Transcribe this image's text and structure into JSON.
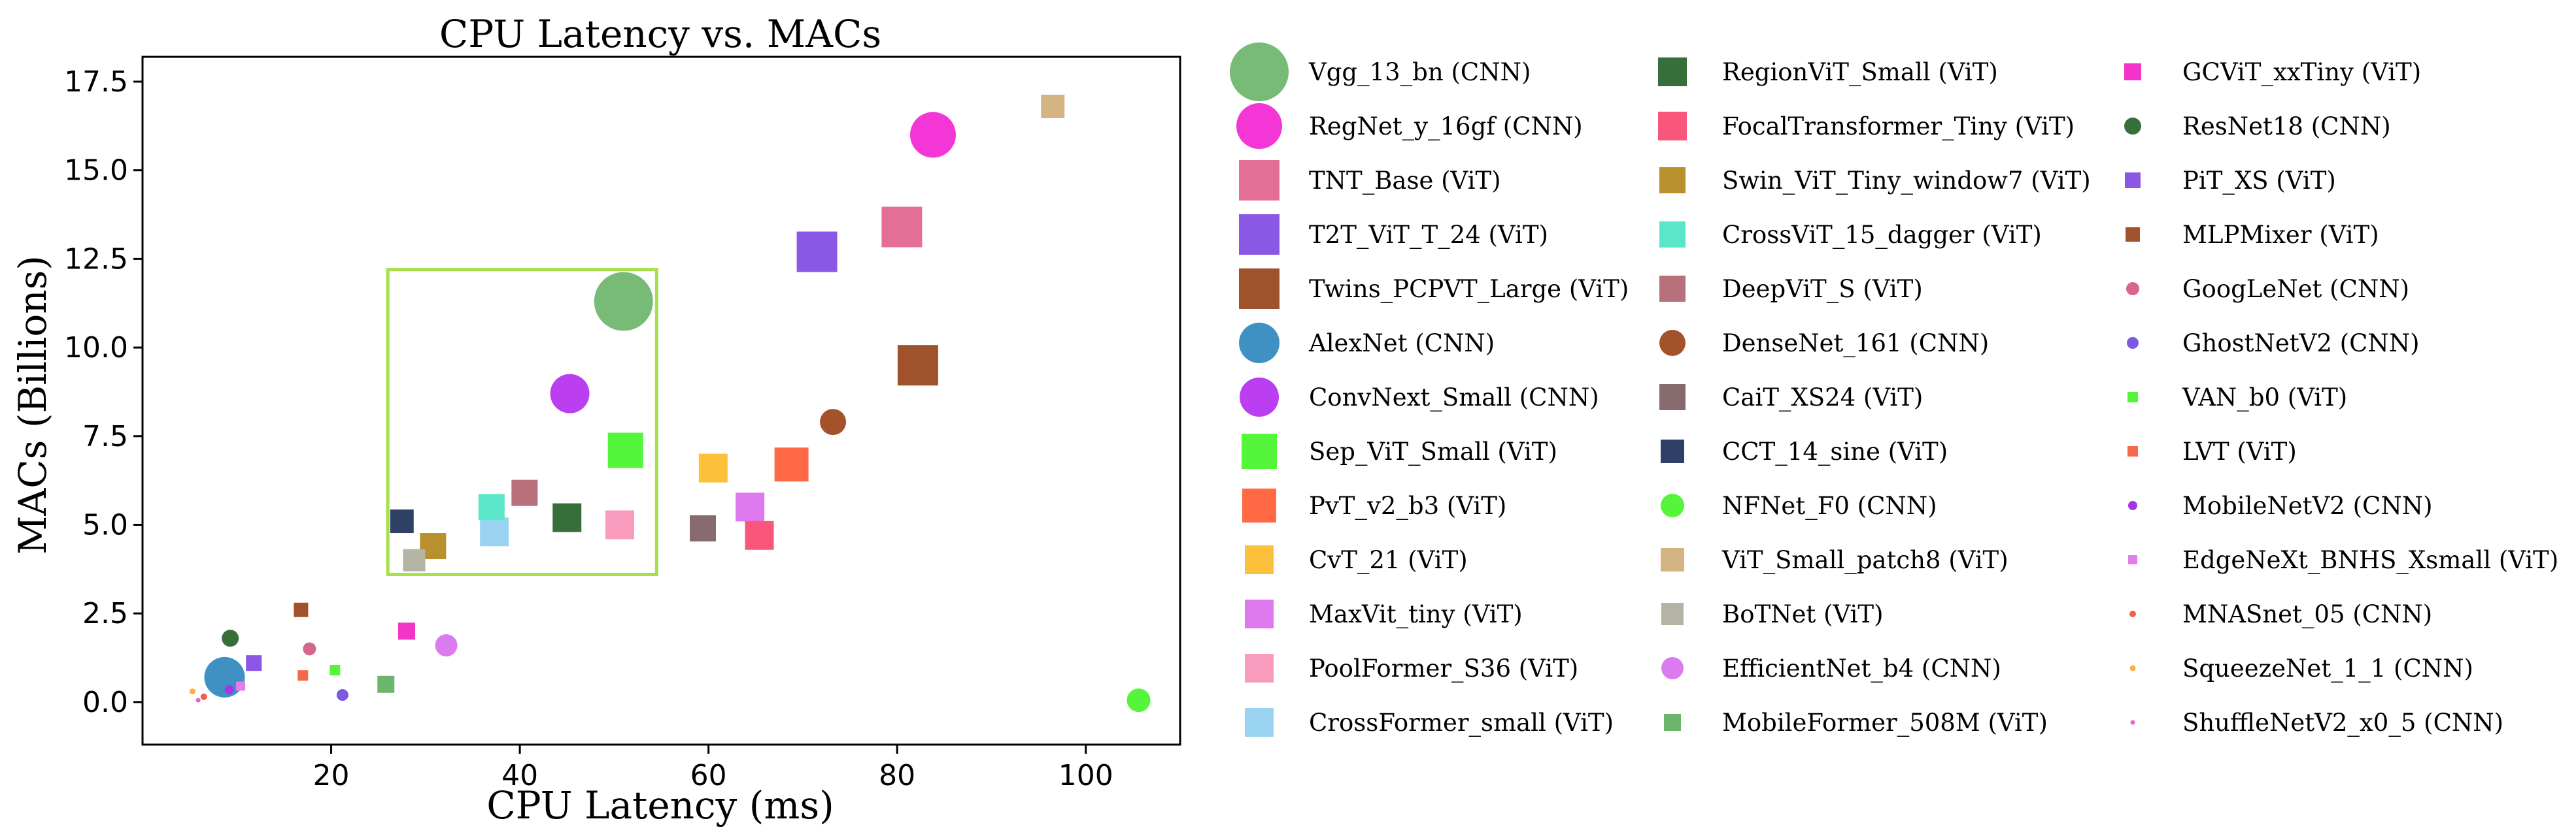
{
  "chart_data": {
    "type": "scatter",
    "title": "CPU Latency vs. MACs",
    "xlabel": "CPU Latency (ms)",
    "ylabel": "MACs (Billions)",
    "xlim": [
      0,
      110
    ],
    "ylim": [
      -1.2,
      18.2
    ],
    "xticks": [
      20,
      40,
      60,
      80,
      100
    ],
    "xtick_labels": [
      "20",
      "40",
      "60",
      "80",
      "100"
    ],
    "yticks": [
      0.0,
      2.5,
      5.0,
      7.5,
      10.0,
      12.5,
      15.0,
      17.5
    ],
    "ytick_labels": [
      "0.0",
      "2.5",
      "5.0",
      "7.5",
      "10.0",
      "12.5",
      "15.0",
      "17.5"
    ],
    "highlight_box": {
      "x": [
        26,
        54.5
      ],
      "y": [
        3.6,
        12.2
      ],
      "color": "#a6e04a"
    },
    "legend_position": "right",
    "series": [
      {
        "name": "Vgg_13_bn (CNN)",
        "marker": "circle",
        "color": "#77bb77",
        "x": 51,
        "y": 11.3,
        "size": 90
      },
      {
        "name": "RegNet_y_16gf (CNN)",
        "marker": "circle",
        "color": "#f536d6",
        "x": 83.8,
        "y": 16.0,
        "size": 70
      },
      {
        "name": "TNT_Base (ViT)",
        "marker": "square",
        "color": "#e36f97",
        "x": 80.5,
        "y": 13.4,
        "size": 62
      },
      {
        "name": "T2T_ViT_T_24 (ViT)",
        "marker": "square",
        "color": "#8a58e4",
        "x": 71.5,
        "y": 12.7,
        "size": 62
      },
      {
        "name": "Twins_PCPVT_Large (ViT)",
        "marker": "square",
        "color": "#a0522d",
        "x": 82.2,
        "y": 9.5,
        "size": 62
      },
      {
        "name": "AlexNet (CNN)",
        "marker": "circle",
        "color": "#3f91c3",
        "x": 8.7,
        "y": 0.7,
        "size": 62
      },
      {
        "name": "ConvNext_Small (CNN)",
        "marker": "circle",
        "color": "#bb3ff0",
        "x": 45.3,
        "y": 8.7,
        "size": 60
      },
      {
        "name": "Sep_ViT_Small (ViT)",
        "marker": "square",
        "color": "#54f53b",
        "x": 51.2,
        "y": 7.1,
        "size": 54
      },
      {
        "name": "PvT_v2_b3 (ViT)",
        "marker": "square",
        "color": "#ff6a45",
        "x": 68.8,
        "y": 6.7,
        "size": 52
      },
      {
        "name": "CvT_21 (ViT)",
        "marker": "square",
        "color": "#fcc03b",
        "x": 60.5,
        "y": 6.6,
        "size": 44
      },
      {
        "name": "MaxVit_tiny (ViT)",
        "marker": "square",
        "color": "#dd78ee",
        "x": 64.4,
        "y": 5.5,
        "size": 44
      },
      {
        "name": "PoolFormer_S36 (ViT)",
        "marker": "square",
        "color": "#f99bbd",
        "x": 50.6,
        "y": 5.0,
        "size": 44
      },
      {
        "name": "CrossFormer_small (ViT)",
        "marker": "square",
        "color": "#9bd4f2",
        "x": 37.3,
        "y": 4.8,
        "size": 44
      },
      {
        "name": "RegionViT_Small (ViT)",
        "marker": "square",
        "color": "#376f3a",
        "x": 45.0,
        "y": 5.2,
        "size": 44
      },
      {
        "name": "FocalTransformer_Tiny (ViT)",
        "marker": "square",
        "color": "#f9567c",
        "x": 65.4,
        "y": 4.7,
        "size": 44
      },
      {
        "name": "Swin_ViT_Tiny_window7 (ViT)",
        "marker": "square",
        "color": "#b8902e",
        "x": 30.8,
        "y": 4.4,
        "size": 40
      },
      {
        "name": "CrossViT_15_dagger (ViT)",
        "marker": "square",
        "color": "#5ae6c8",
        "x": 37.0,
        "y": 5.5,
        "size": 40
      },
      {
        "name": "DeepViT_S (ViT)",
        "marker": "square",
        "color": "#b8707b",
        "x": 40.5,
        "y": 5.9,
        "size": 40
      },
      {
        "name": "DenseNet_161 (CNN)",
        "marker": "circle",
        "color": "#a3522b",
        "x": 73.2,
        "y": 7.9,
        "size": 40
      },
      {
        "name": "CaiT_XS24 (ViT)",
        "marker": "square",
        "color": "#876a6e",
        "x": 59.4,
        "y": 4.9,
        "size": 40
      },
      {
        "name": "CCT_14_sine (ViT)",
        "marker": "square",
        "color": "#2e4066",
        "x": 27.5,
        "y": 5.1,
        "size": 36
      },
      {
        "name": "NFNet_F0 (CNN)",
        "marker": "circle",
        "color": "#54f53b",
        "x": 105.6,
        "y": 0.05,
        "size": 36
      },
      {
        "name": "ViT_Small_patch8 (ViT)",
        "marker": "square",
        "color": "#d4b483",
        "x": 96.5,
        "y": 16.8,
        "size": 36
      },
      {
        "name": "BoTNet (ViT)",
        "marker": "square",
        "color": "#b3b4a4",
        "x": 28.8,
        "y": 4.0,
        "size": 34
      },
      {
        "name": "EfficientNet_b4 (CNN)",
        "marker": "circle",
        "color": "#da7bef",
        "x": 32.2,
        "y": 1.6,
        "size": 34
      },
      {
        "name": "MobileFormer_508M (ViT)",
        "marker": "square",
        "color": "#6cb56c",
        "x": 25.8,
        "y": 0.5,
        "size": 26
      },
      {
        "name": "GCViT_xxTiny (ViT)",
        "marker": "square",
        "color": "#f234c8",
        "x": 28.0,
        "y": 2.0,
        "size": 26
      },
      {
        "name": "ResNet18 (CNN)",
        "marker": "circle",
        "color": "#376f3a",
        "x": 9.3,
        "y": 1.8,
        "size": 26
      },
      {
        "name": "PiT_XS (ViT)",
        "marker": "square",
        "color": "#8a58e4",
        "x": 11.8,
        "y": 1.1,
        "size": 24
      },
      {
        "name": "MLPMixer (ViT)",
        "marker": "square",
        "color": "#a0522d",
        "x": 16.8,
        "y": 2.6,
        "size": 22
      },
      {
        "name": "GoogLeNet (CNN)",
        "marker": "circle",
        "color": "#d7668c",
        "x": 17.7,
        "y": 1.5,
        "size": 20
      },
      {
        "name": "GhostNetV2 (CNN)",
        "marker": "circle",
        "color": "#7a5ae0",
        "x": 21.2,
        "y": 0.2,
        "size": 18
      },
      {
        "name": "VAN_b0 (ViT)",
        "marker": "square",
        "color": "#54f53b",
        "x": 20.4,
        "y": 0.9,
        "size": 16
      },
      {
        "name": "LVT (ViT)",
        "marker": "square",
        "color": "#f4694a",
        "x": 17.0,
        "y": 0.75,
        "size": 16
      },
      {
        "name": "MobileNetV2 (CNN)",
        "marker": "circle",
        "color": "#a337e6",
        "x": 9.2,
        "y": 0.35,
        "size": 14
      },
      {
        "name": "EdgeNeXt_BNHS_Xsmall (ViT)",
        "marker": "square",
        "color": "#e17ded",
        "x": 10.4,
        "y": 0.45,
        "size": 14
      },
      {
        "name": "MNASnet_05 (CNN)",
        "marker": "circle",
        "color": "#f0604a",
        "x": 6.5,
        "y": 0.15,
        "size": 10
      },
      {
        "name": "SqueezeNet_1_1 (CNN)",
        "marker": "circle",
        "color": "#f8b23d",
        "x": 5.3,
        "y": 0.3,
        "size": 9
      },
      {
        "name": "ShuffleNetV2_x0_5 (CNN)",
        "marker": "circle",
        "color": "#e364d8",
        "x": 5.9,
        "y": 0.05,
        "size": 7
      }
    ]
  }
}
